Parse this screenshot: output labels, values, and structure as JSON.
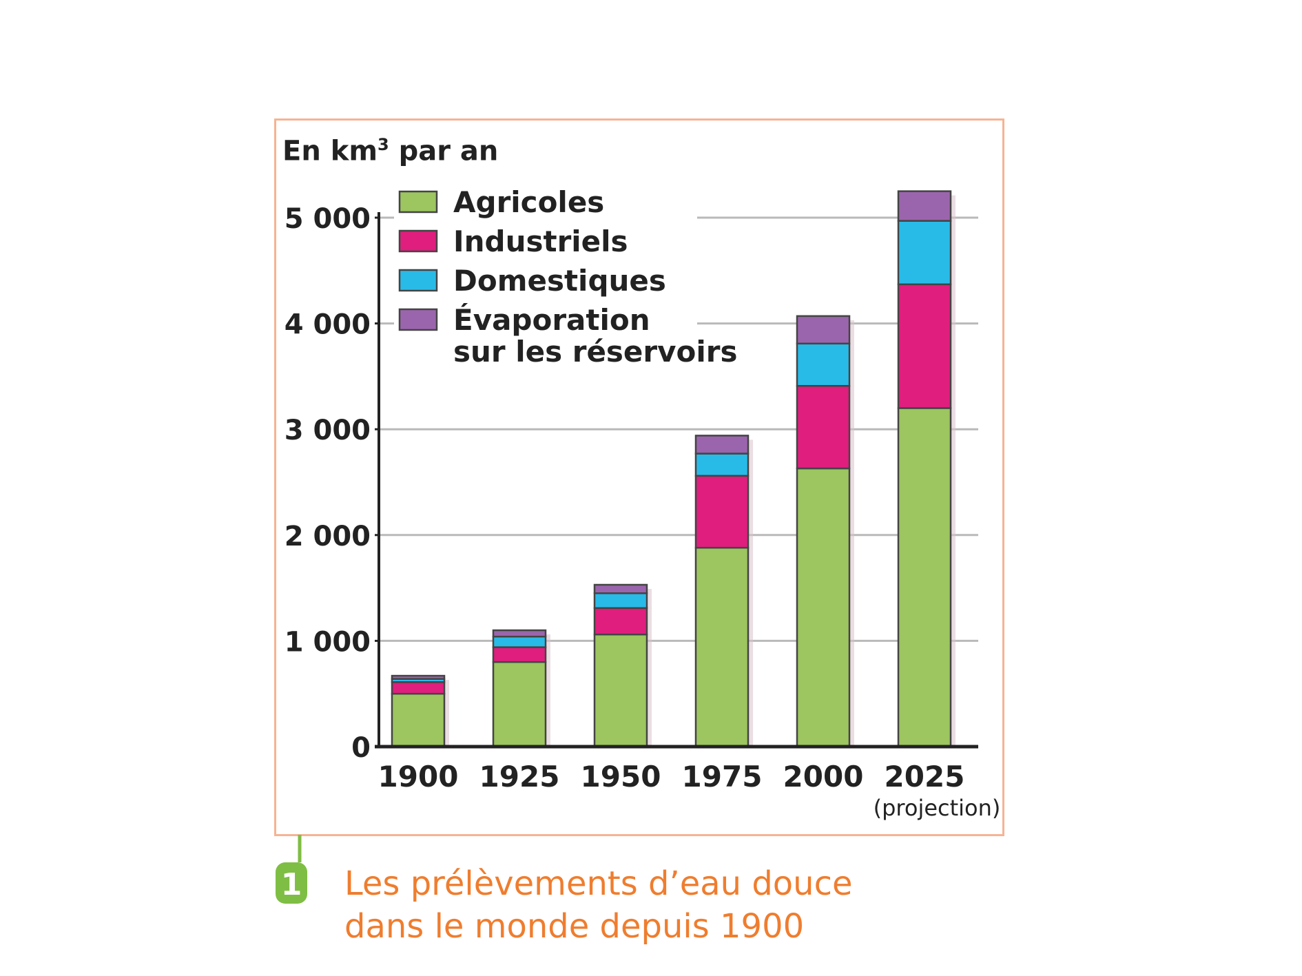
{
  "unit": {
    "prefix": "En km",
    "sup": "3",
    "suffix": " par an"
  },
  "caption": {
    "number": "1",
    "line1": "Les prélèvements d’eau douce",
    "line2": "dans le monde depuis 1900"
  },
  "colors": {
    "frame": "#f6b393",
    "agricoles": "#9dc560",
    "industriels": "#e01e7e",
    "domestiques": "#29bbe8",
    "evaporation": "#9b65ad",
    "badge": "#7fbe44",
    "caption": "#ef7d2e"
  },
  "chart_data": {
    "type": "bar",
    "stacked": true,
    "categories": [
      "1900",
      "1925",
      "1950",
      "1975",
      "2000",
      "2025"
    ],
    "category_notes": [
      "",
      "",
      "",
      "",
      "",
      "(projection)"
    ],
    "ylim": [
      0,
      5000
    ],
    "yticks": [
      "0",
      "1 000",
      "2 000",
      "3 000",
      "4 000",
      "5 000"
    ],
    "ytick_values": [
      0,
      1000,
      2000,
      3000,
      4000,
      5000
    ],
    "ylabel": "En km³ par an",
    "grid": true,
    "legend_position": "top-left",
    "series": [
      {
        "name": "Agricoles",
        "color": "#9dc560",
        "values": [
          500,
          800,
          1060,
          1880,
          2630,
          3200
        ]
      },
      {
        "name": "Industriels",
        "color": "#e01e7e",
        "values": [
          110,
          140,
          250,
          680,
          780,
          1170
        ]
      },
      {
        "name": "Domestiques",
        "color": "#29bbe8",
        "values": [
          30,
          100,
          140,
          210,
          400,
          600
        ]
      },
      {
        "name": "Évaporation sur les réservoirs",
        "legend_lines": [
          "Évaporation",
          "sur les réservoirs"
        ],
        "color": "#9b65ad",
        "values": [
          30,
          60,
          80,
          170,
          260,
          280
        ]
      }
    ]
  }
}
